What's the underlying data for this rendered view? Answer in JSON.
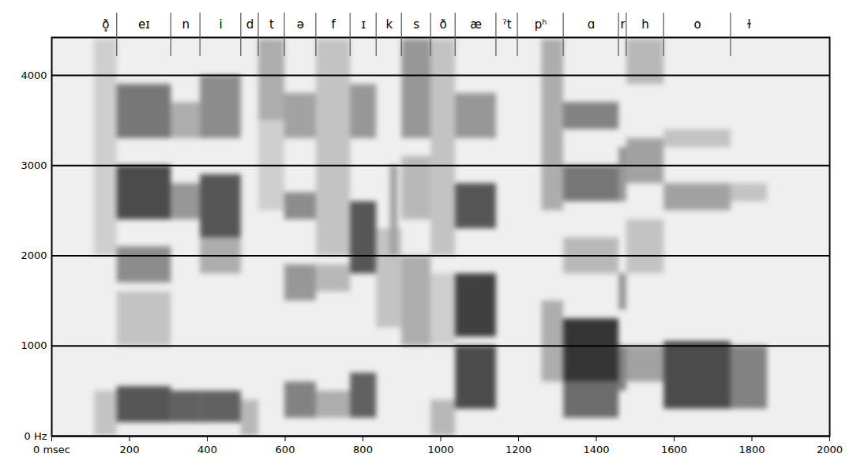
{
  "chart_data": {
    "type": "spectrogram",
    "xlim": [
      0,
      2000
    ],
    "xticks": [
      {
        "value": 0,
        "label": "0 msec"
      },
      200,
      400,
      600,
      800,
      1000,
      1200,
      1400,
      1600,
      1800,
      2000
    ],
    "ylim": [
      0,
      4420
    ],
    "yticks": [
      {
        "value": 0,
        "label": "0 Hz"
      },
      1000,
      2000,
      3000,
      4000
    ],
    "grid": true,
    "levels_lim": [
      0,
      100
    ],
    "segments": [
      {
        "label": "ð̥",
        "start": 110,
        "end": 168
      },
      {
        "label": "eɪ",
        "start": 168,
        "end": 307
      },
      {
        "label": "n",
        "start": 307,
        "end": 382
      },
      {
        "label": "i",
        "start": 382,
        "end": 487
      },
      {
        "label": "d",
        "start": 487,
        "end": 532
      },
      {
        "label": "t",
        "start": 532,
        "end": 599
      },
      {
        "label": "ə",
        "start": 599,
        "end": 680
      },
      {
        "label": "f",
        "start": 680,
        "end": 768
      },
      {
        "label": "ɪ",
        "start": 768,
        "end": 835
      },
      {
        "label": "k",
        "start": 835,
        "end": 900
      },
      {
        "label": "s",
        "start": 900,
        "end": 975
      },
      {
        "label": "ð",
        "start": 975,
        "end": 1038
      },
      {
        "label": "æ",
        "start": 1038,
        "end": 1143
      },
      {
        "label": "ˀt",
        "start": 1143,
        "end": 1198
      },
      {
        "label": "pʰ",
        "start": 1198,
        "end": 1316
      },
      {
        "label": "ɑ",
        "start": 1316,
        "end": 1458
      },
      {
        "label": "r",
        "start": 1458,
        "end": 1478
      },
      {
        "label": "h",
        "start": 1478,
        "end": 1574
      },
      {
        "label": "o",
        "start": 1574,
        "end": 1746
      },
      {
        "label": "ɫ",
        "start": 1746,
        "end": 1840
      }
    ],
    "cells": [
      {
        "t0": 110,
        "t1": 168,
        "f0": 0,
        "f1": 500,
        "level": 20
      },
      {
        "t0": 110,
        "t1": 168,
        "f0": 2000,
        "f1": 4400,
        "level": 15
      },
      {
        "t0": 168,
        "t1": 307,
        "f0": 150,
        "f1": 550,
        "level": 70
      },
      {
        "t0": 168,
        "t1": 307,
        "f0": 1000,
        "f1": 1600,
        "level": 20
      },
      {
        "t0": 168,
        "t1": 307,
        "f0": 1700,
        "f1": 2100,
        "level": 45
      },
      {
        "t0": 168,
        "t1": 307,
        "f0": 2400,
        "f1": 3000,
        "level": 75
      },
      {
        "t0": 168,
        "t1": 307,
        "f0": 3300,
        "f1": 3900,
        "level": 55
      },
      {
        "t0": 307,
        "t1": 382,
        "f0": 150,
        "f1": 500,
        "level": 65
      },
      {
        "t0": 307,
        "t1": 382,
        "f0": 2400,
        "f1": 2800,
        "level": 40
      },
      {
        "t0": 307,
        "t1": 382,
        "f0": 3300,
        "f1": 3700,
        "level": 30
      },
      {
        "t0": 382,
        "t1": 487,
        "f0": 150,
        "f1": 500,
        "level": 65
      },
      {
        "t0": 382,
        "t1": 487,
        "f0": 1800,
        "f1": 2200,
        "level": 30
      },
      {
        "t0": 382,
        "t1": 487,
        "f0": 2200,
        "f1": 2900,
        "level": 70
      },
      {
        "t0": 382,
        "t1": 487,
        "f0": 3300,
        "f1": 4000,
        "level": 45
      },
      {
        "t0": 487,
        "t1": 532,
        "f0": 0,
        "f1": 400,
        "level": 25
      },
      {
        "t0": 532,
        "t1": 599,
        "f0": 2500,
        "f1": 3500,
        "level": 15
      },
      {
        "t0": 532,
        "t1": 599,
        "f0": 3500,
        "f1": 4400,
        "level": 30
      },
      {
        "t0": 599,
        "t1": 680,
        "f0": 200,
        "f1": 600,
        "level": 50
      },
      {
        "t0": 599,
        "t1": 680,
        "f0": 1500,
        "f1": 1900,
        "level": 40
      },
      {
        "t0": 599,
        "t1": 680,
        "f0": 2400,
        "f1": 2700,
        "level": 45
      },
      {
        "t0": 599,
        "t1": 680,
        "f0": 3300,
        "f1": 3800,
        "level": 35
      },
      {
        "t0": 680,
        "t1": 768,
        "f0": 200,
        "f1": 500,
        "level": 30
      },
      {
        "t0": 680,
        "t1": 768,
        "f0": 1600,
        "f1": 1900,
        "level": 25
      },
      {
        "t0": 680,
        "t1": 768,
        "f0": 2000,
        "f1": 4400,
        "level": 20
      },
      {
        "t0": 768,
        "t1": 835,
        "f0": 200,
        "f1": 700,
        "level": 65
      },
      {
        "t0": 768,
        "t1": 835,
        "f0": 1800,
        "f1": 2600,
        "level": 70
      },
      {
        "t0": 768,
        "t1": 835,
        "f0": 3300,
        "f1": 3900,
        "level": 40
      },
      {
        "t0": 835,
        "t1": 900,
        "f0": 1200,
        "f1": 2300,
        "level": 20
      },
      {
        "t0": 870,
        "t1": 890,
        "f0": 2000,
        "f1": 3000,
        "level": 35
      },
      {
        "t0": 900,
        "t1": 975,
        "f0": 1000,
        "f1": 2000,
        "level": 30
      },
      {
        "t0": 900,
        "t1": 975,
        "f0": 2400,
        "f1": 3100,
        "level": 25
      },
      {
        "t0": 900,
        "t1": 975,
        "f0": 3300,
        "f1": 4400,
        "level": 40
      },
      {
        "t0": 975,
        "t1": 1038,
        "f0": 0,
        "f1": 400,
        "level": 25
      },
      {
        "t0": 975,
        "t1": 1038,
        "f0": 1000,
        "f1": 1800,
        "level": 15
      },
      {
        "t0": 975,
        "t1": 1038,
        "f0": 2000,
        "f1": 4400,
        "level": 20
      },
      {
        "t0": 1038,
        "t1": 1143,
        "f0": 300,
        "f1": 1000,
        "level": 75
      },
      {
        "t0": 1038,
        "t1": 1143,
        "f0": 1100,
        "f1": 1800,
        "level": 80
      },
      {
        "t0": 1038,
        "t1": 1143,
        "f0": 2300,
        "f1": 2800,
        "level": 70
      },
      {
        "t0": 1038,
        "t1": 1143,
        "f0": 3300,
        "f1": 3800,
        "level": 40
      },
      {
        "t0": 1260,
        "t1": 1316,
        "f0": 600,
        "f1": 1500,
        "level": 30
      },
      {
        "t0": 1260,
        "t1": 1316,
        "f0": 2500,
        "f1": 4400,
        "level": 30
      },
      {
        "t0": 1316,
        "t1": 1458,
        "f0": 200,
        "f1": 600,
        "level": 60
      },
      {
        "t0": 1316,
        "t1": 1458,
        "f0": 600,
        "f1": 1300,
        "level": 85
      },
      {
        "t0": 1316,
        "t1": 1458,
        "f0": 1800,
        "f1": 2200,
        "level": 25
      },
      {
        "t0": 1316,
        "t1": 1458,
        "f0": 2600,
        "f1": 3000,
        "level": 55
      },
      {
        "t0": 1316,
        "t1": 1458,
        "f0": 3400,
        "f1": 3700,
        "level": 50
      },
      {
        "t0": 1458,
        "t1": 1478,
        "f0": 500,
        "f1": 1000,
        "level": 50
      },
      {
        "t0": 1458,
        "t1": 1478,
        "f0": 1400,
        "f1": 1800,
        "level": 40
      },
      {
        "t0": 1458,
        "t1": 1478,
        "f0": 2600,
        "f1": 3200,
        "level": 40
      },
      {
        "t0": 1478,
        "t1": 1574,
        "f0": 600,
        "f1": 1000,
        "level": 35
      },
      {
        "t0": 1478,
        "t1": 1574,
        "f0": 1800,
        "f1": 2400,
        "level": 20
      },
      {
        "t0": 1478,
        "t1": 1574,
        "f0": 2800,
        "f1": 3300,
        "level": 35
      },
      {
        "t0": 1478,
        "t1": 1574,
        "f0": 3900,
        "f1": 4400,
        "level": 25
      },
      {
        "t0": 1574,
        "t1": 1746,
        "f0": 300,
        "f1": 1050,
        "level": 75
      },
      {
        "t0": 1574,
        "t1": 1746,
        "f0": 2500,
        "f1": 2800,
        "level": 35
      },
      {
        "t0": 1574,
        "t1": 1746,
        "f0": 3200,
        "f1": 3400,
        "level": 20
      },
      {
        "t0": 1746,
        "t1": 1840,
        "f0": 300,
        "f1": 1000,
        "level": 50
      },
      {
        "t0": 1746,
        "t1": 1840,
        "f0": 2600,
        "f1": 2800,
        "level": 20
      }
    ]
  }
}
